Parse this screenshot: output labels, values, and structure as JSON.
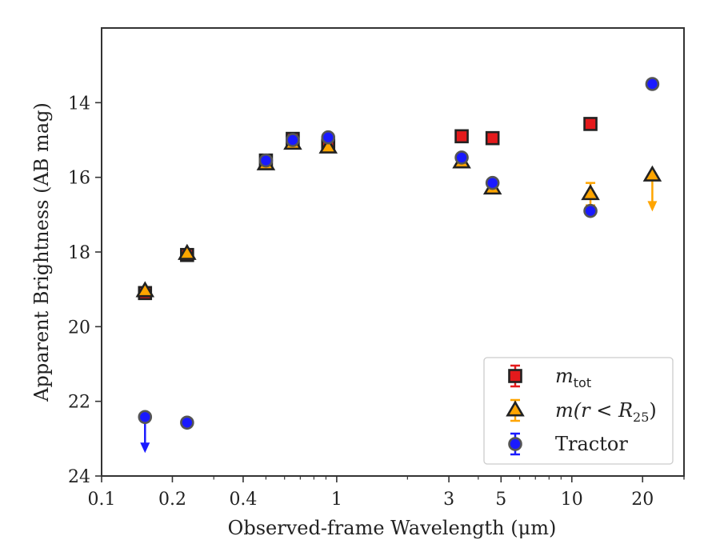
{
  "chart_data": {
    "type": "scatter",
    "xlabel": "Observed-frame Wavelength (μm)",
    "ylabel": "Apparent Brightness (AB mag)",
    "x_scale": "log",
    "xlim": [
      0.1,
      30
    ],
    "ylim": [
      24,
      12
    ],
    "y_inverted": true,
    "xticks": [
      0.1,
      0.2,
      0.4,
      1,
      3,
      5,
      10,
      20
    ],
    "xtick_labels": [
      "0.1",
      "0.2",
      "0.4",
      "1",
      "3",
      "5",
      "10",
      "20"
    ],
    "yticks": [
      14,
      16,
      18,
      20,
      22,
      24
    ],
    "ytick_labels": [
      "14",
      "16",
      "18",
      "20",
      "22",
      "24"
    ],
    "grid": false,
    "legend_position": "lower-right",
    "series": [
      {
        "name": "m_tot",
        "legend_main": "m",
        "legend_sub": "tot",
        "marker": "square",
        "color": "#e41a1c",
        "points": [
          {
            "x": 0.153,
            "y": 19.1
          },
          {
            "x": 0.231,
            "y": 18.08
          },
          {
            "x": 0.5,
            "y": 15.55
          },
          {
            "x": 0.65,
            "y": 14.97
          },
          {
            "x": 0.92,
            "y": 15.15
          },
          {
            "x": 3.4,
            "y": 14.9
          },
          {
            "x": 4.6,
            "y": 14.95
          },
          {
            "x": 12.0,
            "y": 14.57
          }
        ]
      },
      {
        "name": "m(r < R25)",
        "legend_main": "m(r < R",
        "legend_sub": "25",
        "legend_end": ")",
        "marker": "triangle",
        "color": "#ffa500",
        "points": [
          {
            "x": 0.153,
            "y": 19.05
          },
          {
            "x": 0.231,
            "y": 18.05
          },
          {
            "x": 0.5,
            "y": 15.65
          },
          {
            "x": 0.65,
            "y": 15.1
          },
          {
            "x": 0.92,
            "y": 15.2
          },
          {
            "x": 3.4,
            "y": 15.6
          },
          {
            "x": 4.6,
            "y": 16.3
          },
          {
            "x": 12.0,
            "y": 16.45,
            "yerr": 0.3
          },
          {
            "x": 22.0,
            "y": 15.95,
            "upper_limit": true
          }
        ]
      },
      {
        "name": "Tractor",
        "marker": "circle",
        "color": "#1a1aff",
        "points": [
          {
            "x": 0.153,
            "y": 22.42,
            "upper_limit": true
          },
          {
            "x": 0.231,
            "y": 22.57
          },
          {
            "x": 0.5,
            "y": 15.55
          },
          {
            "x": 0.65,
            "y": 15.0
          },
          {
            "x": 0.92,
            "y": 14.93
          },
          {
            "x": 3.4,
            "y": 15.47
          },
          {
            "x": 4.6,
            "y": 16.15
          },
          {
            "x": 12.0,
            "y": 16.9
          },
          {
            "x": 22.0,
            "y": 13.5
          }
        ]
      }
    ],
    "legend": {
      "tractor_label": "Tractor"
    }
  }
}
